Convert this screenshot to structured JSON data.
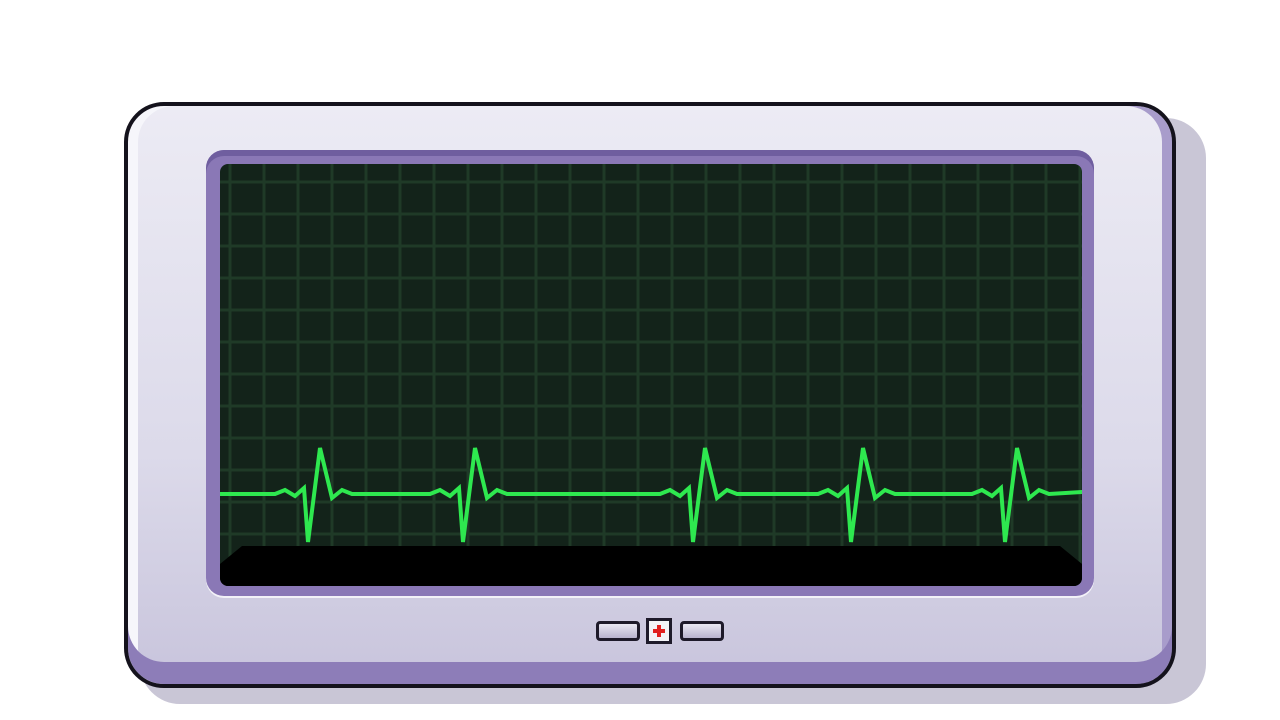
{
  "monitor": {
    "name": "ECG monitor",
    "screen": {
      "background": "#13231a",
      "grid_color": "#1f3a27",
      "trace_color": "#2ee84f",
      "waveform": "ecg-heartbeat",
      "visible_beats": 5
    },
    "controls": {
      "left_button_icon": "blank-button",
      "center_icon": "medical-cross-icon",
      "right_button_icon": "blank-button",
      "cross_color": "#e02020"
    },
    "frame_colors": {
      "body": "#dcdaea",
      "accent": "#8a78b6",
      "outline": "#14121c"
    }
  }
}
